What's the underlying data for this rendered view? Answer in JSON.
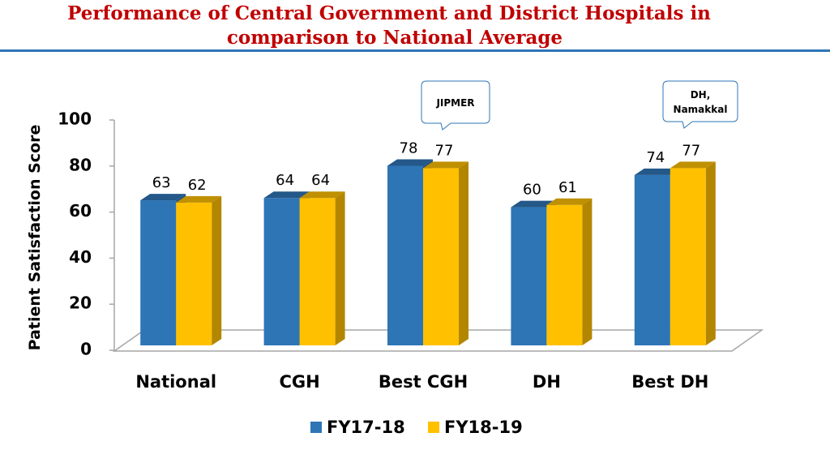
{
  "chart_data": {
    "type": "bar3d",
    "title": [
      "Performance of Central Government and District Hospitals in",
      "comparison to National Average"
    ],
    "y_label": "Patient Satisfaction Score",
    "categories": [
      "National",
      "CGH",
      "Best CGH",
      "DH",
      "Best DH"
    ],
    "series": [
      {
        "name": "FY17-18",
        "color": "#2e75b6",
        "values": [
          63,
          64,
          78,
          60,
          74
        ]
      },
      {
        "name": "FY18-19",
        "color": "#ffc000",
        "values": [
          62,
          64,
          77,
          61,
          77
        ]
      }
    ],
    "ylim": [
      0,
      100
    ],
    "yticks": [
      0,
      20,
      40,
      60,
      80,
      100
    ],
    "annotations": [
      {
        "lines": [
          "JIPMER"
        ]
      },
      {
        "lines": [
          "DH,",
          "Namakkal"
        ]
      }
    ],
    "legend": "bottom"
  }
}
